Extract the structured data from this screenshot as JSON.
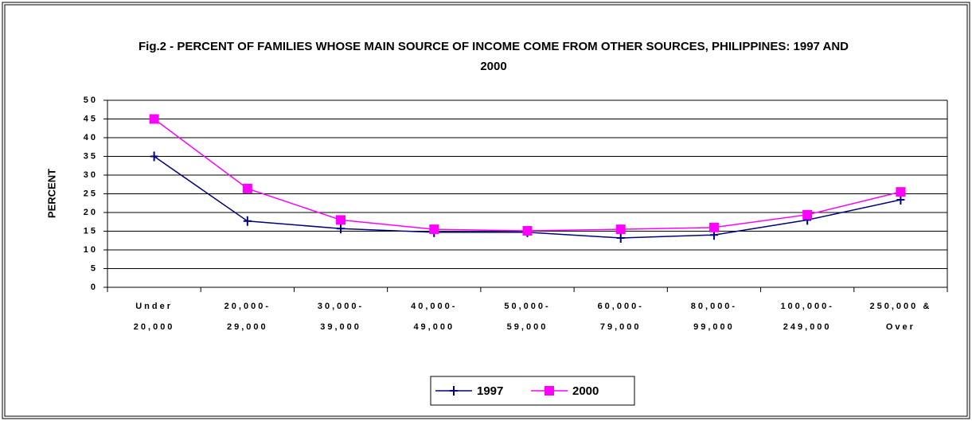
{
  "chart_data": {
    "type": "line",
    "title": "Fig.2 - PERCENT OF FAMILIES WHOSE MAIN SOURCE OF INCOME COME FROM OTHER SOURCES, PHILIPPINES: 1997 AND 2000",
    "y_label": "PERCENT",
    "categories": [
      [
        "Under",
        "20,000"
      ],
      [
        "20,000-",
        "29,000"
      ],
      [
        "30,000-",
        "39,000"
      ],
      [
        "40,000-",
        "49,000"
      ],
      [
        "50,000-",
        "59,000"
      ],
      [
        "60,000-",
        "79,000"
      ],
      [
        "80,000-",
        "99,000"
      ],
      [
        "100,000-",
        "249,000"
      ],
      [
        "250,000 &",
        "Over"
      ]
    ],
    "series": [
      {
        "name": "1997",
        "color": "#000080",
        "values": [
          35,
          17.7,
          15.7,
          14.7,
          14.7,
          13.2,
          14,
          18,
          23.4
        ]
      },
      {
        "name": "2000",
        "color": "#ff00ff",
        "values": [
          45,
          26.4,
          18,
          15.5,
          15.1,
          15.5,
          16,
          19.4,
          25.5
        ]
      }
    ],
    "ylim": [
      0,
      50
    ],
    "yticks": [
      0,
      5,
      10,
      15,
      20,
      25,
      30,
      35,
      40,
      45,
      50
    ],
    "grid": true,
    "legend": "bottom"
  }
}
